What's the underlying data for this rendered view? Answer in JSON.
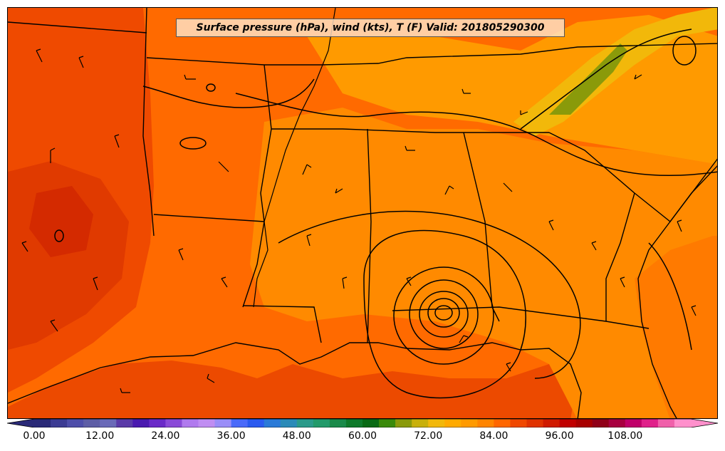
{
  "title": "Surface pressure (hPa), wind (kts), T (F) Valid: 201805290300",
  "colorbar": {
    "min": 0,
    "max": 120,
    "step": 3,
    "extend": "both",
    "tick_labels": [
      "0.00",
      "12.00",
      "24.00",
      "36.00",
      "48.00",
      "60.00",
      "72.00",
      "84.00",
      "96.00",
      "108.00"
    ],
    "colors": [
      "#2a2a78",
      "#3c3c94",
      "#4e4eaa",
      "#5e5ea6",
      "#6a6ab8",
      "#5a3aa8",
      "#4a1ab0",
      "#6a2ac8",
      "#8a4ad8",
      "#b07aee",
      "#c08ef2",
      "#9a8ef8",
      "#4a6afa",
      "#2a5af0",
      "#2a7ad8",
      "#2a8ab8",
      "#2a9a8a",
      "#229a6a",
      "#1a8a4a",
      "#0e7a2a",
      "#086a14",
      "#3a8a0a",
      "#8a9a0a",
      "#c8b00a",
      "#f2b80a",
      "#ffaa00",
      "#ff9a00",
      "#ff8400",
      "#ff6600",
      "#f04800",
      "#e03200",
      "#d01a00",
      "#c00000",
      "#a80000",
      "#900018",
      "#a80040",
      "#c0006a",
      "#e0208a",
      "#f060aa",
      "#ff90cc"
    ]
  },
  "colors": {
    "background_temp": "#ff6a00",
    "warm": "#ff8a00",
    "hot": "#e83800",
    "very_hot": "#d02000",
    "cool_ridge": "#f2b80a",
    "boundary": "#000000"
  },
  "features": {
    "low_pressure_center": "Gulf coast low",
    "wind_barbs": "knots",
    "contours": "isobars"
  }
}
